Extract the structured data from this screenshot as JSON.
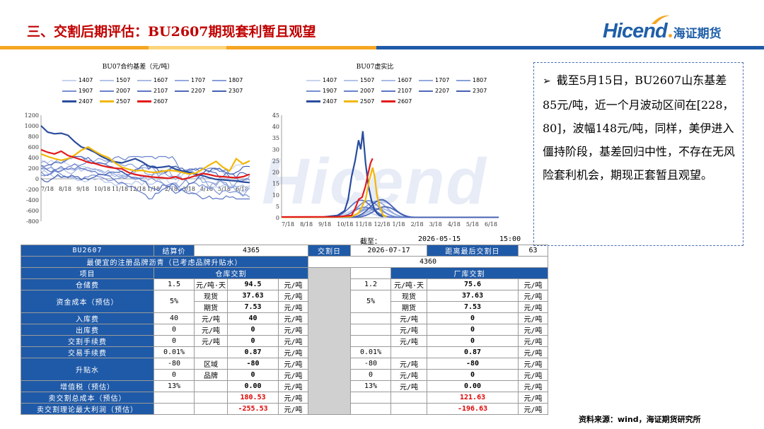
{
  "header": {
    "title": "三、交割后期评估：BU2607期现套利暂且观望",
    "logo_text": "Hicend",
    "logo_cn": "海证期货"
  },
  "colors": {
    "title_red": "#c00000",
    "brand_blue": "#1f5aa8",
    "stripe_orange": "#f5a623",
    "stripe_blue": "#1f5aa8"
  },
  "charts": [
    {
      "type": "line",
      "title": "BU07合约基差（元/吨）",
      "legend_rows": [
        [
          "1407",
          "1507",
          "1607",
          "1707",
          "1807"
        ],
        [
          "1907",
          "2007",
          "2107",
          "2207",
          "2307"
        ],
        [
          "2407",
          "2507",
          "2607"
        ]
      ],
      "x_ticks": [
        "7/18",
        "8/18",
        "9/18",
        "10/18",
        "11/18",
        "12/18",
        "1/18",
        "2/18",
        "3/18",
        "4/18",
        "5/18",
        "6/18"
      ],
      "y_ticks": [
        1200,
        1000,
        800,
        600,
        400,
        200,
        0,
        -200,
        -400,
        -600,
        -800
      ],
      "ylim": [
        -800,
        1200
      ],
      "highlight_series": [
        {
          "name": "2407",
          "color": "#2b4d9e",
          "points": [
            [
              0,
              1000
            ],
            [
              1,
              880
            ],
            [
              2,
              850
            ],
            [
              3,
              860
            ],
            [
              4,
              820
            ],
            [
              5,
              700
            ],
            [
              6,
              600
            ],
            [
              7,
              560
            ],
            [
              8,
              500
            ],
            [
              9,
              420
            ],
            [
              10,
              360
            ],
            [
              11,
              320
            ],
            [
              12,
              300
            ],
            [
              13,
              340
            ],
            [
              14,
              380
            ],
            [
              15,
              320
            ],
            [
              16,
              240
            ],
            [
              17,
              210
            ],
            [
              18,
              220
            ],
            [
              19,
              240
            ],
            [
              20,
              180
            ],
            [
              21,
              150
            ],
            [
              22,
              120
            ],
            [
              23,
              90
            ],
            [
              24,
              60
            ],
            [
              25,
              20
            ],
            [
              26,
              -10
            ],
            [
              27,
              -20
            ],
            [
              28,
              -30
            ],
            [
              29,
              -40
            ],
            [
              30,
              -60
            ],
            [
              31,
              -70
            ]
          ]
        },
        {
          "name": "2507",
          "color": "#f2b705",
          "points": [
            [
              0,
              470
            ],
            [
              1,
              420
            ],
            [
              2,
              380
            ],
            [
              3,
              350
            ],
            [
              4,
              380
            ],
            [
              5,
              450
            ],
            [
              6,
              540
            ],
            [
              7,
              600
            ],
            [
              8,
              520
            ],
            [
              9,
              450
            ],
            [
              10,
              400
            ],
            [
              11,
              300
            ],
            [
              12,
              220
            ],
            [
              13,
              180
            ],
            [
              14,
              150
            ],
            [
              15,
              160
            ],
            [
              16,
              130
            ],
            [
              17,
              120
            ],
            [
              18,
              140
            ],
            [
              19,
              160
            ],
            [
              20,
              150
            ],
            [
              21,
              120
            ],
            [
              22,
              90
            ],
            [
              23,
              110
            ],
            [
              24,
              180
            ],
            [
              25,
              260
            ],
            [
              26,
              330
            ],
            [
              27,
              220
            ],
            [
              28,
              150
            ],
            [
              29,
              380
            ],
            [
              30,
              280
            ],
            [
              31,
              340
            ]
          ]
        },
        {
          "name": "2607",
          "color": "#e31a1c",
          "points": [
            [
              0,
              550
            ],
            [
              1,
              500
            ],
            [
              2,
              470
            ],
            [
              3,
              520
            ],
            [
              4,
              440
            ],
            [
              5,
              400
            ],
            [
              6,
              360
            ],
            [
              7,
              310
            ],
            [
              8,
              290
            ],
            [
              9,
              250
            ],
            [
              10,
              220
            ],
            [
              11,
              200
            ],
            [
              12,
              190
            ],
            [
              13,
              120
            ],
            [
              14,
              80
            ],
            [
              15,
              60
            ],
            [
              16,
              40
            ],
            [
              17,
              30
            ],
            [
              18,
              20
            ],
            [
              19,
              10
            ],
            [
              20,
              40
            ],
            [
              21,
              -10
            ],
            [
              22,
              20
            ],
            [
              23,
              60
            ],
            [
              24,
              100
            ],
            [
              25,
              80
            ],
            [
              26,
              50
            ],
            [
              27,
              40
            ],
            [
              28,
              30
            ],
            [
              29,
              20
            ],
            [
              30,
              40
            ],
            [
              31,
              85
            ]
          ]
        }
      ]
    },
    {
      "type": "line",
      "title": "BU07虚实比",
      "legend_rows": [
        [
          "1407",
          "1507",
          "1607",
          "1707",
          "1807"
        ],
        [
          "1907",
          "2007",
          "2107",
          "2207",
          "2307"
        ],
        [
          "2407",
          "2507",
          "2607"
        ]
      ],
      "x_ticks": [
        "7/18",
        "8/18",
        "9/18",
        "10/18",
        "11/18",
        "12/18",
        "1/18",
        "2/18",
        "3/18",
        "4/18",
        "5/18",
        "6/18"
      ],
      "y_ticks": [
        45,
        40,
        35,
        30,
        25,
        20,
        15,
        10,
        5,
        0
      ],
      "ylim": [
        0,
        45
      ],
      "highlight_series": [
        {
          "name": "2407",
          "color": "#2b4d9e",
          "points": [
            [
              0,
              0.2
            ],
            [
              6,
              0.3
            ],
            [
              8,
              1
            ],
            [
              9,
              3
            ],
            [
              9.5,
              8
            ],
            [
              10,
              18
            ],
            [
              10.5,
              25
            ],
            [
              11,
              34
            ],
            [
              11.3,
              30
            ],
            [
              11.6,
              38
            ],
            [
              12,
              24
            ],
            [
              12.4,
              14
            ],
            [
              12.8,
              8
            ],
            [
              13.2,
              4
            ],
            [
              13.6,
              2
            ],
            [
              14,
              1
            ],
            [
              14.5,
              0.5
            ]
          ]
        },
        {
          "name": "2507",
          "color": "#f2b705",
          "points": [
            [
              0,
              0.2
            ],
            [
              8,
              0.3
            ],
            [
              10,
              0.5
            ],
            [
              11,
              2
            ],
            [
              12,
              8
            ],
            [
              12.5,
              16
            ],
            [
              13,
              22
            ],
            [
              13.3,
              18
            ],
            [
              13.6,
              10
            ],
            [
              14,
              5
            ],
            [
              14.5,
              1
            ],
            [
              15,
              0.5
            ]
          ]
        },
        {
          "name": "2607",
          "color": "#e31a1c",
          "points": [
            [
              0,
              0.3
            ],
            [
              8,
              0.4
            ],
            [
              10,
              1
            ],
            [
              10.5,
              4
            ],
            [
              11,
              8
            ],
            [
              11.5,
              9
            ],
            [
              12,
              14
            ],
            [
              12.4,
              20
            ],
            [
              12.7,
              24
            ],
            [
              13,
              26
            ]
          ]
        }
      ]
    }
  ],
  "note": {
    "arrow": "➢",
    "text": "截至5月15日，BU2607山东基差85元/吨，近一个月波动区间在[228，80]，波幅148元/吨，同样，美伊进入僵持阶段，基差回归中性，不存在无风险套利机会，期现正套暂且观望。"
  },
  "as_of": {
    "label": "截至：",
    "date": "2026-05-15",
    "time": "15:00"
  },
  "table": {
    "contract": "BU2607",
    "settle_label": "结算价",
    "settle_value": "4365",
    "delivery_label": "交割日",
    "delivery_date": "2026-07-17",
    "days_label": "距离最后交割日",
    "days_value": "63",
    "cheapest_label": "最便宜的注册品牌沥青（已考虑品牌升贴水）",
    "cheapest_value": "4360",
    "item_label": "项目",
    "warehouse_header": "仓库交割",
    "factory_header": "厂库交割",
    "rows": {
      "storage": {
        "label": "仓储费",
        "w_rate": "1.5",
        "w_unit": "元/吨·天",
        "w_val": "94.5",
        "w_u": "元/吨",
        "f_rate": "1.2",
        "f_unit": "元/吨·天",
        "f_val": "75.6",
        "f_u": "元/吨"
      },
      "capital": {
        "label": "资金成本（预估）",
        "w_rate": "5%",
        "spot": "现货",
        "futures": "期货",
        "w_spot": "37.63",
        "w_fut": "7.53",
        "f_rate": "5%",
        "f_spot": "37.63",
        "f_fut": "7.53",
        "u": "元/吨"
      },
      "inbound": {
        "label": "入库费",
        "w_rate": "40",
        "w_unit": "元/吨",
        "w_val": "40",
        "w_u": "元/吨",
        "f_unit": "元/吨",
        "f_val": "0",
        "f_u": "元/吨"
      },
      "outbound": {
        "label": "出库费",
        "w_rate": "0",
        "w_unit": "元/吨",
        "w_val": "0",
        "w_u": "元/吨",
        "f_unit": "元/吨",
        "f_val": "0",
        "f_u": "元/吨"
      },
      "delivery_fee": {
        "label": "交割手续费",
        "w_rate": "0",
        "w_unit": "元/吨",
        "w_val": "0",
        "w_u": "元/吨",
        "f_unit": "元/吨",
        "f_val": "0",
        "f_u": "元/吨"
      },
      "trade_fee": {
        "label": "交易手续费",
        "w_rate": "0.01%",
        "w_val": "0.87",
        "w_u": "元/吨",
        "f_rate": "0.01%",
        "f_val": "0.87",
        "f_u": "元/吨"
      },
      "premium": {
        "label": "升贴水",
        "region_rate": "-80",
        "region": "区域",
        "region_val": "-80",
        "brand_rate": "0",
        "brand": "品牌",
        "brand_val": "0",
        "f_region_rate": "-80",
        "f_region_unit": "元/吨",
        "f_region_val": "-80",
        "f_brand_rate": "0",
        "f_brand_unit": "元/吨",
        "f_brand_val": "0",
        "u": "元/吨"
      },
      "vat": {
        "label": "增值税（预估）",
        "w_rate": "13%",
        "w_val": "0.00",
        "w_u": "元/吨",
        "f_rate": "13%",
        "f_unit": "元/吨",
        "f_val": "0.00",
        "f_u": "元/吨"
      },
      "total_cost": {
        "label": "卖交割总成本（预估）",
        "w_val": "180.53",
        "f_val": "121.63",
        "u": "元/吨"
      },
      "max_profit": {
        "label": "卖交割理论最大利润（预估）",
        "w_val": "-255.53",
        "f_val": "-196.63",
        "u": "元/吨"
      }
    }
  },
  "watermark": "Hicend",
  "source": "资料来源：wind，海证期货研究所"
}
